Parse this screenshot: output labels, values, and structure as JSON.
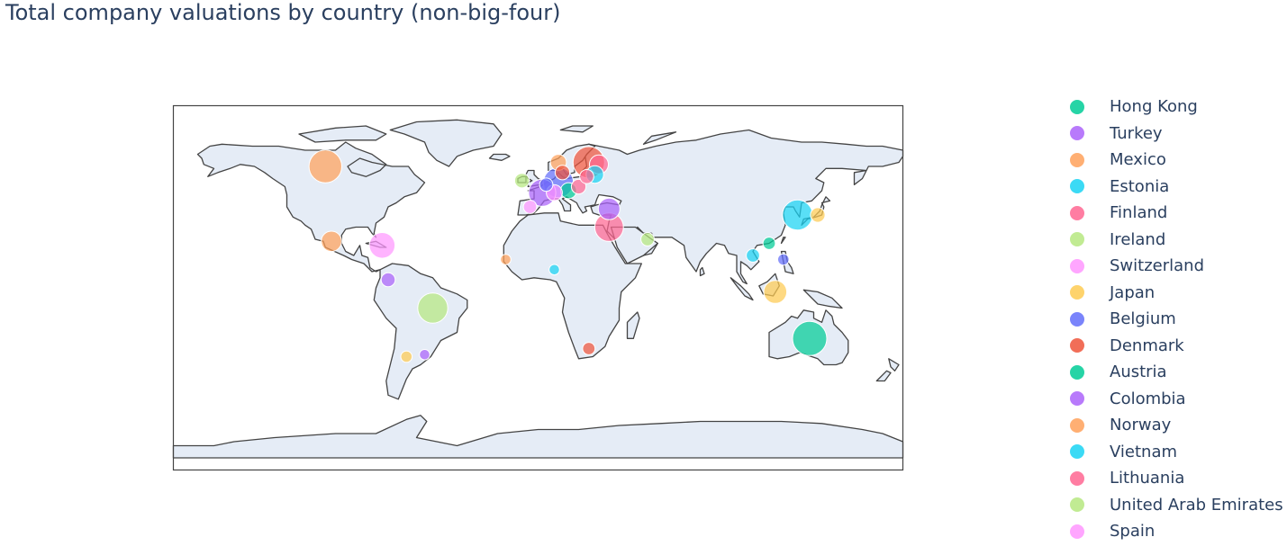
{
  "title": "Total company valuations by country (non-big-four)",
  "colors": {
    "ocean": "#ffffff",
    "land": "#e5ecf6",
    "coastline": "#444444",
    "frame": "#444444"
  },
  "legend": [
    {
      "name": "Hong Kong",
      "color": "#00cc96"
    },
    {
      "name": "Turkey",
      "color": "#ab63fa"
    },
    {
      "name": "Mexico",
      "color": "#ffa15a"
    },
    {
      "name": "Estonia",
      "color": "#19d3f3"
    },
    {
      "name": "Finland",
      "color": "#ff6692"
    },
    {
      "name": "Ireland",
      "color": "#b6e880"
    },
    {
      "name": "Switzerland",
      "color": "#ff97ff"
    },
    {
      "name": "Japan",
      "color": "#fecb52"
    },
    {
      "name": "Belgium",
      "color": "#636efa"
    },
    {
      "name": "Denmark",
      "color": "#ef553b"
    },
    {
      "name": "Austria",
      "color": "#00cc96"
    },
    {
      "name": "Colombia",
      "color": "#ab63fa"
    },
    {
      "name": "Norway",
      "color": "#ffa15a"
    },
    {
      "name": "Vietnam",
      "color": "#19d3f3"
    },
    {
      "name": "Lithuania",
      "color": "#ff6692"
    },
    {
      "name": "United Arab Emirates",
      "color": "#b6e880"
    },
    {
      "name": "Spain",
      "color": "#ff97ff"
    }
  ],
  "bubbles": [
    {
      "lon": 134,
      "lat": -25,
      "size": 1.0,
      "color": "#00cc96"
    },
    {
      "lon": -105,
      "lat": 60,
      "size": 0.95,
      "color": "#ffa15a"
    },
    {
      "lon": -52,
      "lat": -10,
      "size": 0.85,
      "color": "#b6e880"
    },
    {
      "lon": 128,
      "lat": 36,
      "size": 0.85,
      "color": "#19d3f3"
    },
    {
      "lon": 10,
      "lat": 52,
      "size": 0.85,
      "color": "#636efa"
    },
    {
      "lon": 2,
      "lat": 47,
      "size": 0.75,
      "color": "#ab63fa"
    },
    {
      "lon": 25,
      "lat": 62,
      "size": 0.9,
      "color": "#ef553b"
    },
    {
      "lon": 35,
      "lat": 30,
      "size": 0.8,
      "color": "#ff6692"
    },
    {
      "lon": -77,
      "lat": 21,
      "size": 0.7,
      "color": "#ff97ff"
    },
    {
      "lon": -102,
      "lat": 23,
      "size": 0.5,
      "color": "#ffa15a"
    },
    {
      "lon": 35,
      "lat": 39,
      "size": 0.55,
      "color": "#ab63fa"
    },
    {
      "lon": 117,
      "lat": -2,
      "size": 0.6,
      "color": "#fecb52"
    },
    {
      "lon": 30,
      "lat": 61,
      "size": 0.45,
      "color": "#ff6692"
    },
    {
      "lon": 28,
      "lat": 56,
      "size": 0.4,
      "color": "#19d3f3"
    },
    {
      "lon": 138,
      "lat": 36,
      "size": 0.3,
      "color": "#fecb52"
    },
    {
      "lon": -8,
      "lat": 53,
      "size": 0.3,
      "color": "#b6e880"
    },
    {
      "lon": 15,
      "lat": 48,
      "size": 0.35,
      "color": "#00cc96"
    },
    {
      "lon": 8,
      "lat": 47,
      "size": 0.35,
      "color": "#ff97ff"
    },
    {
      "lon": 24,
      "lat": 55,
      "size": 0.28,
      "color": "#ff6692"
    },
    {
      "lon": -74,
      "lat": 4,
      "size": 0.28,
      "color": "#ab63fa"
    },
    {
      "lon": 54,
      "lat": 24,
      "size": 0.25,
      "color": "#b6e880"
    },
    {
      "lon": 106,
      "lat": 16,
      "size": 0.25,
      "color": "#19d3f3"
    },
    {
      "lon": 114,
      "lat": 22,
      "size": 0.22,
      "color": "#00cc96"
    },
    {
      "lon": -4,
      "lat": 40,
      "size": 0.25,
      "color": "#ff97ff"
    },
    {
      "lon": 25,
      "lat": -30,
      "size": 0.22,
      "color": "#ef553b"
    },
    {
      "lon": 10,
      "lat": 62,
      "size": 0.35,
      "color": "#ffa15a"
    },
    {
      "lon": 12,
      "lat": 57,
      "size": 0.3,
      "color": "#ef553b"
    },
    {
      "lon": 121,
      "lat": 14,
      "size": 0.18,
      "color": "#636efa"
    },
    {
      "lon": 8,
      "lat": 9,
      "size": 0.15,
      "color": "#19d3f3"
    },
    {
      "lon": -16,
      "lat": 14,
      "size": 0.15,
      "color": "#ffa15a"
    },
    {
      "lon": -65,
      "lat": -34,
      "size": 0.18,
      "color": "#fecb52"
    },
    {
      "lon": -56,
      "lat": -33,
      "size": 0.15,
      "color": "#ab63fa"
    },
    {
      "lon": 4,
      "lat": 51,
      "size": 0.25,
      "color": "#636efa"
    },
    {
      "lon": 20,
      "lat": 50,
      "size": 0.3,
      "color": "#ff6692"
    }
  ]
}
